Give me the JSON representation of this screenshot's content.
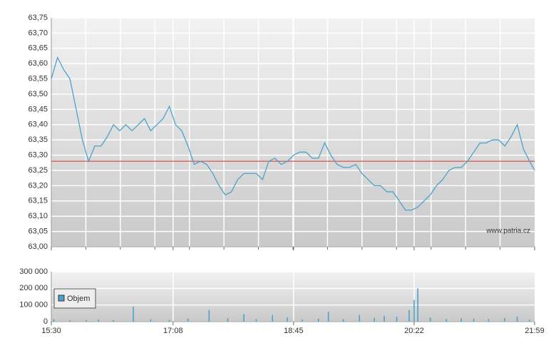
{
  "chart_data": [
    {
      "type": "line",
      "x": [
        "15:30",
        "15:35",
        "15:40",
        "15:45",
        "15:50",
        "15:55",
        "16:00",
        "16:05",
        "16:10",
        "16:15",
        "16:20",
        "16:25",
        "16:30",
        "16:35",
        "16:40",
        "16:45",
        "16:50",
        "16:55",
        "17:00",
        "17:05",
        "17:10",
        "17:15",
        "17:20",
        "17:25",
        "17:30",
        "17:35",
        "17:40",
        "17:45",
        "17:50",
        "17:55",
        "18:00",
        "18:05",
        "18:10",
        "18:15",
        "18:20",
        "18:25",
        "18:30",
        "18:35",
        "18:40",
        "18:45",
        "18:50",
        "18:55",
        "19:00",
        "19:05",
        "19:10",
        "19:15",
        "19:20",
        "19:25",
        "19:30",
        "19:35",
        "19:40",
        "19:45",
        "19:50",
        "19:55",
        "20:00",
        "20:05",
        "20:10",
        "20:15",
        "20:20",
        "20:25",
        "20:30",
        "20:35",
        "20:40",
        "20:45",
        "20:50",
        "20:55",
        "21:00",
        "21:05",
        "21:10",
        "21:15",
        "21:20",
        "21:25",
        "21:30",
        "21:35",
        "21:40",
        "21:45",
        "21:50",
        "21:55",
        "21:59"
      ],
      "series": [
        {
          "color": "#4aa3cc",
          "values": [
            63.55,
            63.62,
            63.58,
            63.55,
            63.45,
            63.35,
            63.28,
            63.33,
            63.33,
            63.36,
            63.4,
            63.38,
            63.4,
            63.38,
            63.4,
            63.42,
            63.38,
            63.4,
            63.42,
            63.46,
            63.4,
            63.38,
            63.33,
            63.27,
            63.28,
            63.27,
            63.24,
            63.2,
            63.17,
            63.18,
            63.22,
            63.24,
            63.24,
            63.24,
            63.22,
            63.28,
            63.29,
            63.27,
            63.28,
            63.3,
            63.31,
            63.31,
            63.29,
            63.29,
            63.34,
            63.3,
            63.27,
            63.26,
            63.26,
            63.27,
            63.24,
            63.22,
            63.2,
            63.2,
            63.18,
            63.18,
            63.15,
            63.12,
            63.12,
            63.13,
            63.15,
            63.17,
            63.2,
            63.22,
            63.25,
            63.26,
            63.26,
            63.28,
            63.31,
            63.34,
            63.34,
            63.35,
            63.35,
            63.33,
            63.36,
            63.4,
            63.32,
            63.28,
            63.25
          ]
        }
      ],
      "reference_line": {
        "value": 63.28,
        "color": "#d9534f"
      },
      "xlim": [
        "15:30",
        "21:59"
      ],
      "xticks": [
        "15:30",
        "17:08",
        "18:45",
        "20:22",
        "21:59"
      ],
      "ylim": [
        63.0,
        63.75
      ],
      "yticks": [
        {
          "value": 63.0,
          "label": "63,00"
        },
        {
          "value": 63.05,
          "label": "63,05"
        },
        {
          "value": 63.1,
          "label": "63,10"
        },
        {
          "value": 63.15,
          "label": "63,15"
        },
        {
          "value": 63.2,
          "label": "63,20"
        },
        {
          "value": 63.25,
          "label": "63,25"
        },
        {
          "value": 63.3,
          "label": "63,30"
        },
        {
          "value": 63.35,
          "label": "63,35"
        },
        {
          "value": 63.4,
          "label": "63,40"
        },
        {
          "value": 63.45,
          "label": "63,45"
        },
        {
          "value": 63.5,
          "label": "63,50"
        },
        {
          "value": 63.55,
          "label": "63,55"
        },
        {
          "value": 63.6,
          "label": "63,60"
        },
        {
          "value": 63.65,
          "label": "63,65"
        },
        {
          "value": 63.7,
          "label": "63,70"
        },
        {
          "value": 63.75,
          "label": "63,75"
        }
      ],
      "grid": true,
      "watermark": "www.patria.cz"
    },
    {
      "type": "bar",
      "x": [
        "15:32",
        "15:45",
        "15:58",
        "16:08",
        "16:20",
        "16:36",
        "16:50",
        "17:05",
        "17:20",
        "17:37",
        "17:52",
        "18:05",
        "18:15",
        "18:28",
        "18:40",
        "18:52",
        "19:05",
        "19:13",
        "19:25",
        "19:38",
        "19:50",
        "19:58",
        "20:08",
        "20:18",
        "20:22",
        "20:25",
        "20:35",
        "20:48",
        "21:00",
        "21:10",
        "21:22",
        "21:35",
        "21:45",
        "21:55"
      ],
      "series": [
        {
          "name": "Objem",
          "color": "#4aa3cc",
          "values": [
            15000,
            8000,
            10000,
            12000,
            9000,
            90000,
            14000,
            10000,
            18000,
            70000,
            20000,
            45000,
            15000,
            40000,
            25000,
            12000,
            18000,
            60000,
            15000,
            40000,
            22000,
            35000,
            30000,
            70000,
            130000,
            200000,
            25000,
            15000,
            20000,
            18000,
            16000,
            22000,
            30000,
            12000
          ]
        }
      ],
      "xlim": [
        "15:30",
        "21:59"
      ],
      "xticks": [
        "15:30",
        "17:08",
        "18:45",
        "20:22",
        "21:59"
      ],
      "ylim": [
        0,
        300000
      ],
      "yticks": [
        0,
        {
          "value": 100000,
          "label": "100 000"
        },
        {
          "value": 200000,
          "label": "200 000"
        },
        {
          "value": 300000,
          "label": "300 000"
        }
      ],
      "grid": true,
      "legend": "top-left"
    }
  ]
}
